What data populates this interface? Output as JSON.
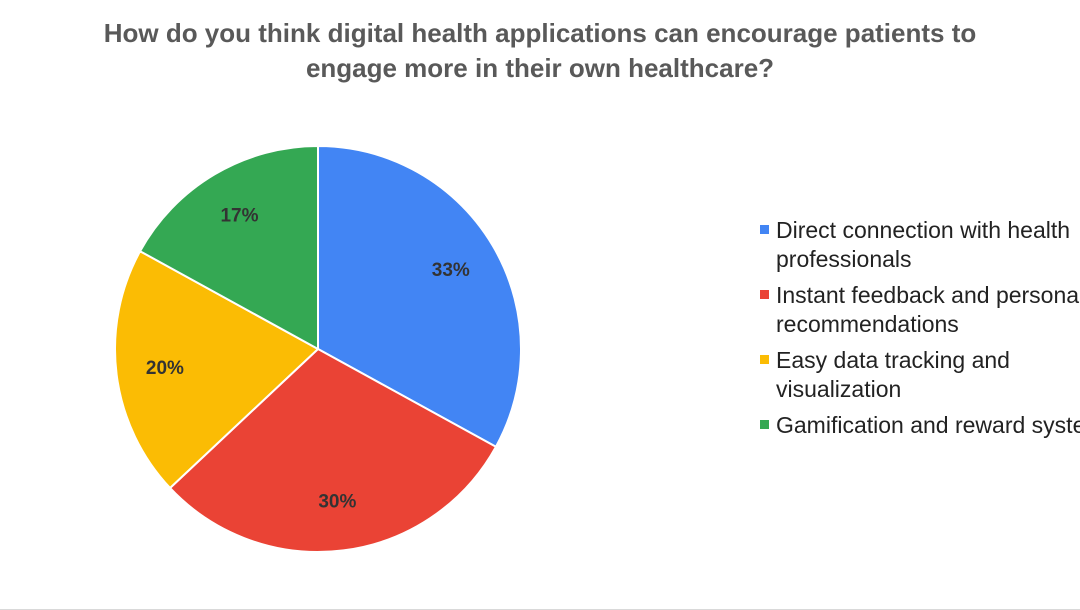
{
  "chart_data": {
    "type": "pie",
    "title": "How do you think digital health applications can encourage patients to engage more in their own healthcare?",
    "title_lines": [
      "How do you think digital health applications can encourage patients to",
      "engage more in their own healthcare?"
    ],
    "legend_position": "right",
    "slices": [
      {
        "label": "Direct connection with health professionals",
        "label_lines": [
          "Direct connection with health",
          "professionals"
        ],
        "value": 33,
        "display": "33%",
        "color": "#4285f4"
      },
      {
        "label": "Instant feedback and personalized recommendations",
        "label_lines": [
          "Instant feedback and personalized",
          "recommendations"
        ],
        "value": 30,
        "display": "30%",
        "color": "#ea4335"
      },
      {
        "label": "Easy data tracking and visualization",
        "label_lines": [
          "Easy data tracking and",
          "visualization"
        ],
        "value": 20,
        "display": "20%",
        "color": "#fbbc04"
      },
      {
        "label": "Gamification and reward systems",
        "label_lines": [
          "Gamification and reward systems"
        ],
        "value": 17,
        "display": "17%",
        "color": "#34a853"
      }
    ]
  }
}
